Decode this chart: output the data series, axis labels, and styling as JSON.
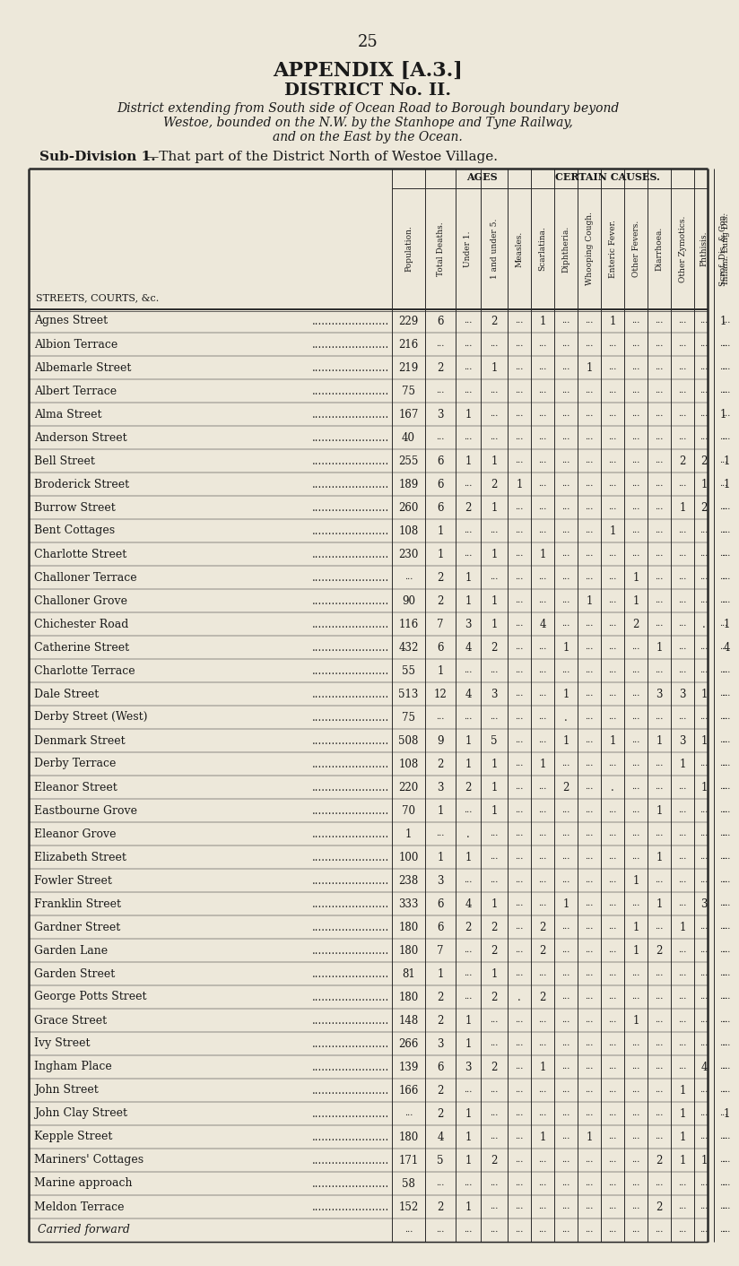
{
  "page_number": "25",
  "title1": "APPENDIX [A.3.]",
  "title2": "DISTRICT No. II.",
  "subtitle_lines": [
    "District extending from South side of Ocean Road to Borough boundary beyond",
    "Westoe, bounded on the N.W. by the Stanhope and Tyne Railway,",
    "and on the East by the Ocean."
  ],
  "subdiv_bold": "Sub-Division 1.",
  "subdiv_rest": "—That part of the District North of Westoe Village.",
  "col_headers_rotated": [
    "Population.",
    "Total Deaths.",
    "Under 1.",
    "1 and under 5.",
    "Measles.",
    "Scarlatina.",
    "Diphtheria.",
    "Whooping Cough.",
    "Enteric Fever.",
    "Other Fevers.",
    "Diarrhoea.",
    "Other Zymotics.",
    "Phthisis.",
    "Inflam. Lung Dis.",
    "Scrof. Dis. & Con."
  ],
  "rows": [
    [
      "Agnes Street",
      "229",
      "6",
      "...",
      "2",
      "...",
      "1",
      "...",
      "...",
      "1",
      "...",
      "...",
      "...",
      "...",
      "...",
      "1"
    ],
    [
      "Albion Terrace",
      "216",
      "...",
      "...",
      "...",
      "...",
      "...",
      "...",
      "...",
      "...",
      "...",
      "...",
      "...",
      "...",
      "...",
      "..."
    ],
    [
      "Albemarle Street",
      "219",
      "2",
      "...",
      "1",
      "...",
      "...",
      "...",
      "1",
      "...",
      "...",
      "...",
      "...",
      "...",
      "...",
      "..."
    ],
    [
      "Albert Terrace",
      "75",
      "...",
      "...",
      "...",
      "...",
      "...",
      "...",
      "...",
      "...",
      "...",
      "...",
      "...",
      "...",
      "...",
      "..."
    ],
    [
      "Alma Street",
      "167",
      "3",
      "1",
      "...",
      "...",
      "...",
      "...",
      "...",
      "...",
      "...",
      "...",
      "...",
      "...",
      "...",
      "1"
    ],
    [
      "Anderson Street",
      "40",
      "...",
      "...",
      "...",
      "...",
      "...",
      "...",
      "...",
      "...",
      "...",
      "...",
      "...",
      "...",
      "...",
      "..."
    ],
    [
      "Bell Street",
      "255",
      "6",
      "1",
      "1",
      "...",
      "...",
      "...",
      "...",
      "...",
      "...",
      "...",
      "2",
      "2",
      "1",
      "..."
    ],
    [
      "Broderick Street",
      "189",
      "6",
      "...",
      "2",
      "1",
      "...",
      "...",
      "...",
      "...",
      "...",
      "...",
      "...",
      "1",
      "1",
      "..."
    ],
    [
      "Burrow Street",
      "260",
      "6",
      "2",
      "1",
      "...",
      "...",
      "...",
      "...",
      "...",
      "...",
      "...",
      "1",
      "2",
      "...",
      "..."
    ],
    [
      "Bent Cottages",
      "108",
      "1",
      "...",
      "...",
      "...",
      "...",
      "...",
      "...",
      "1",
      "...",
      "...",
      "...",
      "...",
      "...",
      "..."
    ],
    [
      "Charlotte Street",
      "230",
      "1",
      "...",
      "1",
      "...",
      "1",
      "...",
      "...",
      "...",
      "...",
      "...",
      "...",
      "...",
      "...",
      "..."
    ],
    [
      "Challoner Terrace",
      "...",
      "2",
      "1",
      "...",
      "...",
      "...",
      "...",
      "...",
      "...",
      "1",
      "...",
      "...",
      "...",
      "...",
      "..."
    ],
    [
      "Challoner Grove",
      "90",
      "2",
      "1",
      "1",
      "...",
      "...",
      "...",
      "1",
      "...",
      "1",
      "...",
      "...",
      "...",
      "...",
      "..."
    ],
    [
      "Chichester Road",
      "116",
      "7",
      "3",
      "1",
      "...",
      "4",
      "...",
      "...",
      "...",
      "2",
      "...",
      "...",
      ".",
      "1",
      "..."
    ],
    [
      "Catherine Street",
      "432",
      "6",
      "4",
      "2",
      "...",
      "...",
      "1",
      "...",
      "...",
      "...",
      "1",
      "...",
      "...",
      "4",
      "..."
    ],
    [
      "Charlotte Terrace",
      "55",
      "1",
      "...",
      "...",
      "...",
      "...",
      "...",
      "...",
      "...",
      "...",
      "...",
      "...",
      "...",
      "...",
      "..."
    ],
    [
      "Dale Street",
      "513",
      "12",
      "4",
      "3",
      "...",
      "...",
      "1",
      "...",
      "...",
      "...",
      "3",
      "3",
      "1",
      "...",
      "..."
    ],
    [
      "Derby Street (West)",
      "75",
      "...",
      "...",
      "...",
      "...",
      "...",
      ".",
      "...",
      "...",
      "...",
      "...",
      "...",
      "...",
      "...",
      "..."
    ],
    [
      "Denmark Street",
      "508",
      "9",
      "1",
      "5",
      "...",
      "...",
      "1",
      "...",
      "1",
      "...",
      "1",
      "3",
      "1",
      "...",
      "..."
    ],
    [
      "Derby Terrace",
      "108",
      "2",
      "1",
      "1",
      "...",
      "1",
      "...",
      "...",
      "...",
      "...",
      "...",
      "1",
      "...",
      "...",
      "..."
    ],
    [
      "Eleanor Street",
      "220",
      "3",
      "2",
      "1",
      "...",
      "...",
      "2",
      "...",
      ".",
      "...",
      "...",
      "...",
      "1",
      "...",
      "..."
    ],
    [
      "Eastbourne Grove",
      "70",
      "1",
      "...",
      "1",
      "...",
      "...",
      "...",
      "...",
      "...",
      "...",
      "1",
      "...",
      "...",
      "...",
      "..."
    ],
    [
      "Eleanor Grove",
      "1",
      "...",
      ".",
      "...",
      "...",
      "...",
      "...",
      "...",
      "...",
      "...",
      "...",
      "...",
      "...",
      "...",
      "..."
    ],
    [
      "Elizabeth Street",
      "100",
      "1",
      "1",
      "...",
      "...",
      "...",
      "...",
      "...",
      "...",
      "...",
      "1",
      "...",
      "...",
      "...",
      "..."
    ],
    [
      "Fowler Street",
      "238",
      "3",
      "...",
      "...",
      "...",
      "...",
      "...",
      "...",
      "...",
      "1",
      "...",
      "...",
      "...",
      "...",
      "..."
    ],
    [
      "Franklin Street",
      "333",
      "6",
      "4",
      "1",
      "...",
      "...",
      "1",
      "...",
      "...",
      "...",
      "1",
      "...",
      "3",
      "...",
      "..."
    ],
    [
      "Gardner Street",
      "180",
      "6",
      "2",
      "2",
      "...",
      "2",
      "...",
      "...",
      "...",
      "1",
      "...",
      "1",
      "...",
      "...",
      "..."
    ],
    [
      "Garden Lane",
      "180",
      "7",
      "...",
      "2",
      "...",
      "2",
      "...",
      "...",
      "...",
      "1",
      "2",
      "...",
      "...",
      "...",
      "..."
    ],
    [
      "Garden Street",
      "81",
      "1",
      "...",
      "1",
      "...",
      "...",
      "...",
      "...",
      "...",
      "...",
      "...",
      "...",
      "...",
      "...",
      "..."
    ],
    [
      "George Potts Street",
      "180",
      "2",
      "...",
      "2",
      ".",
      "2",
      "...",
      "...",
      "...",
      "...",
      "...",
      "...",
      "...",
      "...",
      "..."
    ],
    [
      "Grace Street",
      "148",
      "2",
      "1",
      "...",
      "...",
      "...",
      "...",
      "...",
      "...",
      "1",
      "...",
      "...",
      "...",
      "...",
      "..."
    ],
    [
      "Ivy Street",
      "266",
      "3",
      "1",
      "...",
      "...",
      "...",
      "...",
      "...",
      "...",
      "...",
      "...",
      "...",
      "...",
      "...",
      "..."
    ],
    [
      "Ingham Place",
      "139",
      "6",
      "3",
      "2",
      "...",
      "1",
      "...",
      "...",
      "...",
      "...",
      "...",
      "...",
      "4",
      "...",
      "..."
    ],
    [
      "John Street",
      "166",
      "2",
      "...",
      "...",
      "...",
      "...",
      "...",
      "...",
      "...",
      "...",
      "...",
      "1",
      "...",
      "...",
      "..."
    ],
    [
      "John Clay Street",
      "...",
      "2",
      "1",
      "...",
      "...",
      "...",
      "...",
      "...",
      "...",
      "...",
      "...",
      "1",
      "...",
      "1",
      "..."
    ],
    [
      "Kepple Street",
      "180",
      "4",
      "1",
      "...",
      "...",
      "1",
      "...",
      "1",
      "...",
      "...",
      "...",
      "1",
      "...",
      "...",
      "..."
    ],
    [
      "Mariners' Cottages",
      "171",
      "5",
      "1",
      "2",
      "...",
      "...",
      "...",
      "...",
      "...",
      "...",
      "2",
      "1",
      "1",
      "...",
      "..."
    ],
    [
      "Marine approach",
      "58",
      "...",
      "...",
      "...",
      "...",
      "...",
      "...",
      "...",
      "...",
      "...",
      "...",
      "...",
      "...",
      "...",
      "..."
    ],
    [
      "Meldon Terrace",
      "152",
      "2",
      "1",
      "...",
      "...",
      "...",
      "...",
      "...",
      "...",
      "...",
      "2",
      "...",
      "...",
      "...",
      "..."
    ],
    [
      "Carried forward",
      "...",
      "...",
      "...",
      "...",
      "...",
      "...",
      "...",
      "...",
      "...",
      "...",
      "...",
      "...",
      "...",
      "...",
      "..."
    ]
  ],
  "bg_color": "#ede8da",
  "text_color": "#1a1a1a",
  "line_color": "#2a2a2a"
}
